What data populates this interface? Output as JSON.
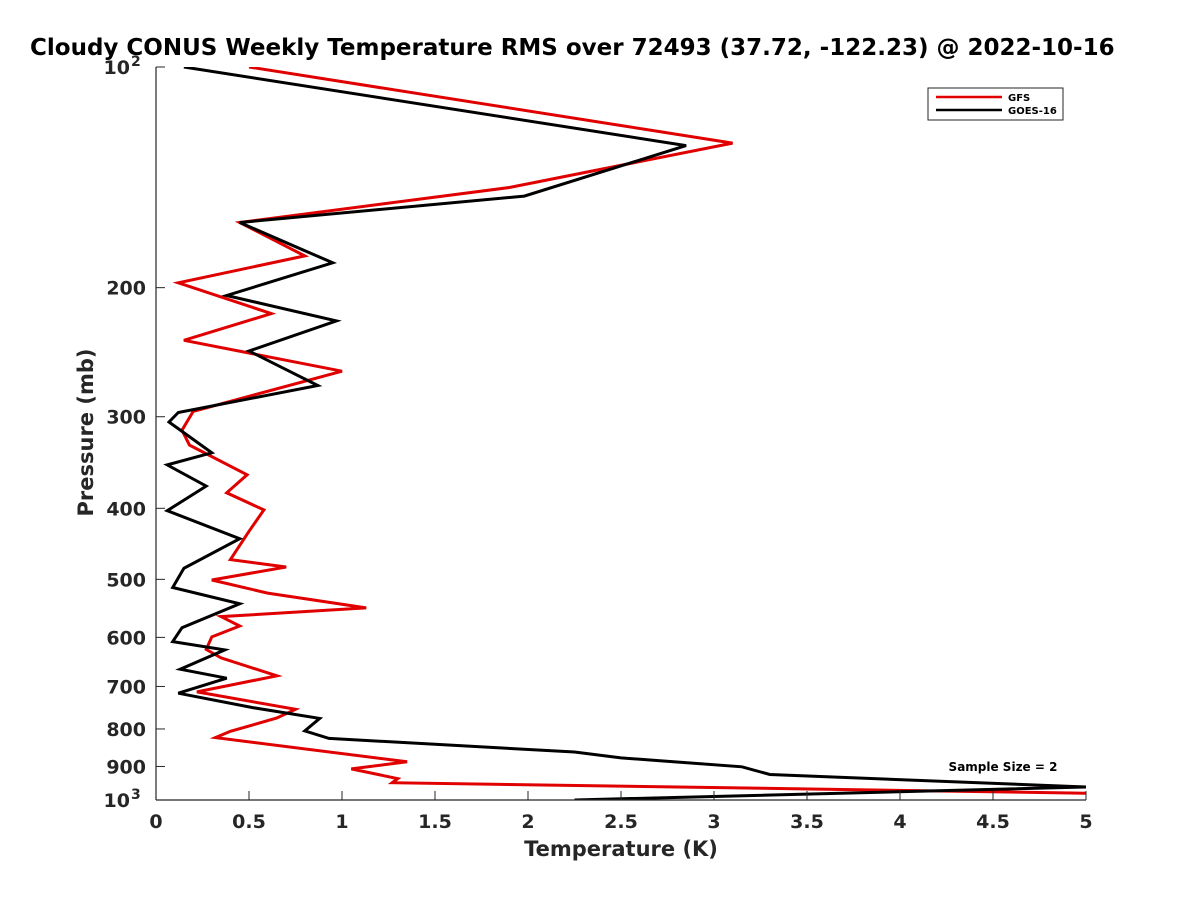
{
  "chart_data": {
    "type": "line",
    "title": "Cloudy CONUS Weekly Temperature RMS over 72493 (37.72, -122.23) @ 2022-10-16",
    "xlabel": "Temperature (K)",
    "ylabel": "Pressure (mb)",
    "xlim": [
      0,
      5
    ],
    "ylim": [
      100,
      1000
    ],
    "yscale": "log",
    "y_reversed": true,
    "x_ticks": [
      "0",
      "0.5",
      "1",
      "1.5",
      "2",
      "2.5",
      "3",
      "3.5",
      "4",
      "4.5",
      "5"
    ],
    "x_tick_values": [
      0,
      0.5,
      1,
      1.5,
      2,
      2.5,
      3,
      3.5,
      4,
      4.5,
      5
    ],
    "y_ticks": [
      {
        "value": 100,
        "base": "10",
        "exp": "2"
      },
      {
        "value": 200,
        "label": "200"
      },
      {
        "value": 300,
        "label": "300"
      },
      {
        "value": 400,
        "label": "400"
      },
      {
        "value": 500,
        "label": "500"
      },
      {
        "value": 600,
        "label": "600"
      },
      {
        "value": 700,
        "label": "700"
      },
      {
        "value": 800,
        "label": "800"
      },
      {
        "value": 900,
        "label": "900"
      },
      {
        "value": 1000,
        "base": "10",
        "exp": "3"
      }
    ],
    "legend_position": "top-right",
    "annotation": "Sample Size = 2",
    "series": [
      {
        "name": "GFS",
        "color": "#e00000",
        "x": [
          0.5,
          3.1,
          1.9,
          0.45,
          0.8,
          0.12,
          0.62,
          0.15,
          1.0,
          0.2,
          0.14,
          0.18,
          0.49,
          0.38,
          0.58,
          0.5,
          0.4,
          0.7,
          0.3,
          0.6,
          1.13,
          0.35,
          0.45,
          0.3,
          0.27,
          0.35,
          0.65,
          0.22,
          0.75,
          0.65,
          0.4,
          0.32,
          1.35,
          1.05,
          1.3,
          1.27,
          5.0
        ],
        "y": [
          100,
          127,
          146,
          163,
          181,
          197,
          217,
          236,
          260,
          295,
          313,
          328,
          360,
          381,
          402,
          430,
          470,
          481,
          501,
          522,
          547,
          562,
          579,
          599,
          623,
          640,
          677,
          712,
          752,
          773,
          806,
          822,
          887,
          907,
          935,
          947,
          979
        ]
      },
      {
        "name": "GOES-16",
        "color": "#000000",
        "x": [
          0.15,
          2.85,
          1.98,
          0.45,
          0.95,
          0.38,
          0.97,
          0.5,
          0.87,
          0.12,
          0.07,
          0.3,
          0.06,
          0.27,
          0.06,
          0.45,
          0.15,
          0.09,
          0.45,
          0.14,
          0.09,
          0.37,
          0.13,
          0.38,
          0.12,
          0.52,
          0.88,
          0.8,
          0.93,
          2.25,
          2.5,
          3.15,
          3.3,
          5.0,
          2.25
        ],
        "y": [
          100,
          128,
          150,
          163,
          185,
          205,
          222,
          244,
          272,
          296,
          305,
          336,
          349,
          373,
          403,
          440,
          483,
          513,
          540,
          582,
          608,
          624,
          663,
          682,
          715,
          748,
          774,
          805,
          824,
          860,
          876,
          901,
          923,
          960,
          1000
        ]
      }
    ]
  }
}
